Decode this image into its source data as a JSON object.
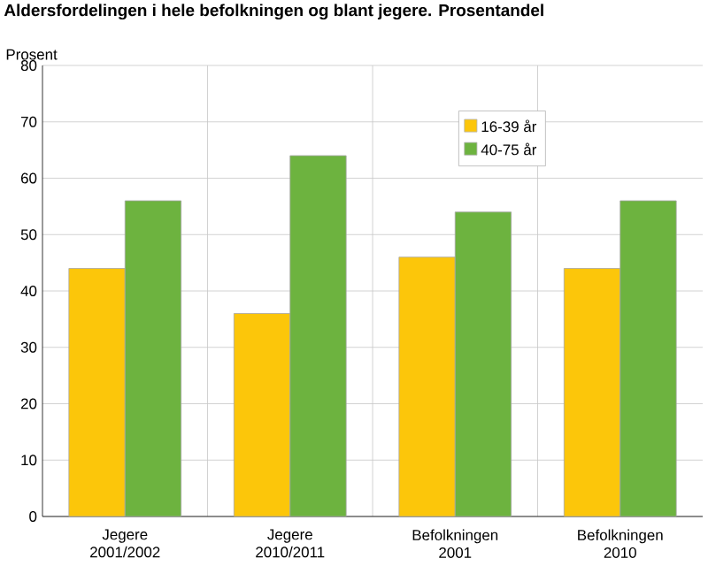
{
  "chart_data": {
    "type": "bar",
    "title": "Aldersfordelingen i hele befolkningen og blant jegere. Prosentandel",
    "ylabel": "Prosent",
    "categories": [
      "Jegere 2001/2002",
      "Jegere 2010/2011",
      "Befolkningen 2001",
      "Befolkningen 2010"
    ],
    "series": [
      {
        "name": "16-39 år",
        "color": "#fcc60a",
        "values": [
          44,
          36,
          46,
          44
        ]
      },
      {
        "name": "40-75 år",
        "color": "#6db33f",
        "values": [
          56,
          64,
          54,
          56
        ]
      }
    ],
    "ylim": [
      0,
      80
    ],
    "yticks": [
      0,
      10,
      20,
      30,
      40,
      50,
      60,
      70,
      80
    ],
    "grid": true,
    "legend": "top right"
  }
}
